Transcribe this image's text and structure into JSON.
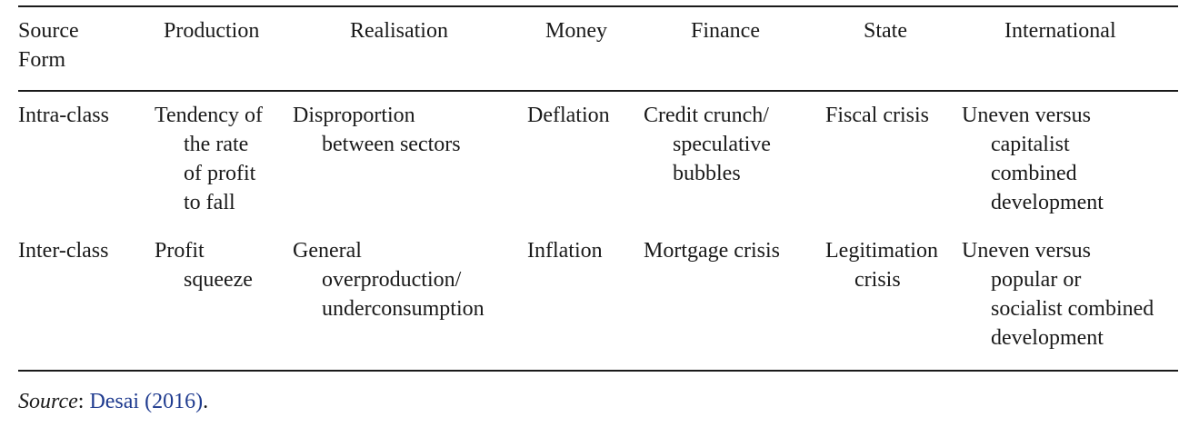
{
  "table": {
    "header": [
      {
        "lines": [
          "Source",
          "Form"
        ]
      },
      {
        "lines": [
          "Production"
        ]
      },
      {
        "lines": [
          "Realisation"
        ]
      },
      {
        "lines": [
          "Money"
        ]
      },
      {
        "lines": [
          "Finance"
        ]
      },
      {
        "lines": [
          "State"
        ]
      },
      {
        "lines": [
          "International"
        ]
      }
    ],
    "rows": [
      {
        "cells": [
          {
            "lines": [
              "Intra-class"
            ]
          },
          {
            "lines": [
              "Tendency of",
              "the rate",
              "of profit",
              "to fall"
            ]
          },
          {
            "lines": [
              "Disproportion",
              "between sectors"
            ]
          },
          {
            "lines": [
              "Deflation"
            ]
          },
          {
            "lines": [
              "Credit crunch/",
              "speculative",
              "bubbles"
            ]
          },
          {
            "lines": [
              "Fiscal crisis"
            ]
          },
          {
            "lines": [
              "Uneven versus",
              "capitalist",
              "combined",
              "development"
            ]
          }
        ]
      },
      {
        "cells": [
          {
            "lines": [
              "Inter-class"
            ]
          },
          {
            "lines": [
              "Profit",
              "squeeze"
            ]
          },
          {
            "lines": [
              "General",
              "overproduction/",
              "underconsumption"
            ]
          },
          {
            "lines": [
              "Inflation"
            ]
          },
          {
            "lines": [
              "Mortgage crisis"
            ]
          },
          {
            "lines": [
              "Legitimation",
              "crisis"
            ]
          },
          {
            "lines": [
              "Uneven versus",
              "popular or",
              "socialist combined",
              "development"
            ]
          }
        ]
      }
    ]
  },
  "source": {
    "label": "Source",
    "separator": ": ",
    "citation": "Desai (2016)",
    "end": "."
  },
  "colors": {
    "text": "#1a1a1a",
    "citation_link": "#1f3b8f"
  }
}
